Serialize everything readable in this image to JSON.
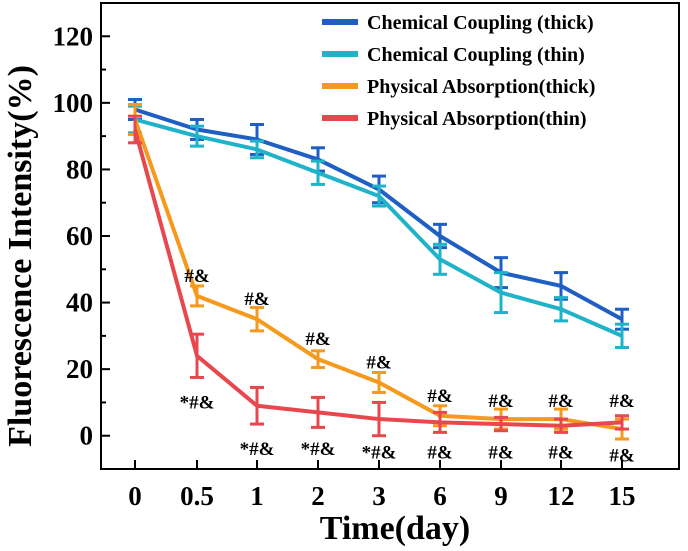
{
  "chart_data": {
    "type": "line",
    "title": "",
    "xlabel": "Time(day)",
    "ylabel": "Fluorescence Intensity(%)",
    "categories": [
      "0",
      "0.5",
      "1",
      "2",
      "3",
      "6",
      "9",
      "12",
      "15"
    ],
    "ylim": [
      -10,
      130
    ],
    "yticks": [
      0,
      20,
      40,
      60,
      80,
      100,
      120
    ],
    "series": [
      {
        "name": "Chemical Coupling (thick)",
        "color": "#1f5fc4",
        "values": [
          98,
          92,
          89,
          83,
          74,
          60,
          49,
          45,
          35
        ],
        "errors": [
          3,
          3,
          4.5,
          3.5,
          4,
          3.5,
          4.5,
          4,
          3
        ]
      },
      {
        "name": "Chemical Coupling (thin)",
        "color": "#1fb3c9",
        "values": [
          95,
          90,
          86,
          79,
          72,
          53,
          43,
          38,
          30
        ],
        "errors": [
          4,
          3,
          2.5,
          3.5,
          3,
          4.5,
          6,
          3.5,
          3.5
        ]
      },
      {
        "name": "Physical Absorption(thick)",
        "color": "#f59a1d",
        "values": [
          95,
          42,
          35,
          23,
          16,
          6,
          5,
          5,
          2
        ],
        "errors": [
          4.5,
          3,
          3.5,
          2.5,
          3,
          3,
          3,
          3,
          3
        ]
      },
      {
        "name": "Physical Absorption(thin)",
        "color": "#e8484d",
        "values": [
          92,
          24,
          9,
          7,
          5,
          4,
          3.5,
          3,
          4
        ],
        "errors": [
          4,
          6.5,
          5.5,
          4.5,
          5,
          3,
          2,
          2,
          2
        ]
      }
    ],
    "annotations_upper": [
      {
        "category": "0.5",
        "value": 48,
        "text": "#&"
      },
      {
        "category": "1",
        "value": 41,
        "text": "#&"
      },
      {
        "category": "2",
        "value": 29,
        "text": "#&"
      },
      {
        "category": "3",
        "value": 22,
        "text": "#&"
      },
      {
        "category": "6",
        "value": 12,
        "text": "#&"
      },
      {
        "category": "9",
        "value": 10.5,
        "text": "#&"
      },
      {
        "category": "12",
        "value": 10.5,
        "text": "#&"
      },
      {
        "category": "15",
        "value": 10.5,
        "text": "#&"
      }
    ],
    "annotations_lower": [
      {
        "category": "0.5",
        "value": 10,
        "text": "*#&"
      },
      {
        "category": "1",
        "value": -4,
        "text": "*#&"
      },
      {
        "category": "2",
        "value": -4,
        "text": "*#&"
      },
      {
        "category": "3",
        "value": -5,
        "text": "*#&"
      },
      {
        "category": "6",
        "value": -5,
        "text": "#&"
      },
      {
        "category": "9",
        "value": -5,
        "text": "#&"
      },
      {
        "category": "12",
        "value": -5,
        "text": "#&"
      },
      {
        "category": "15",
        "value": -6,
        "text": "#&"
      }
    ],
    "legend_position": "top-right"
  }
}
